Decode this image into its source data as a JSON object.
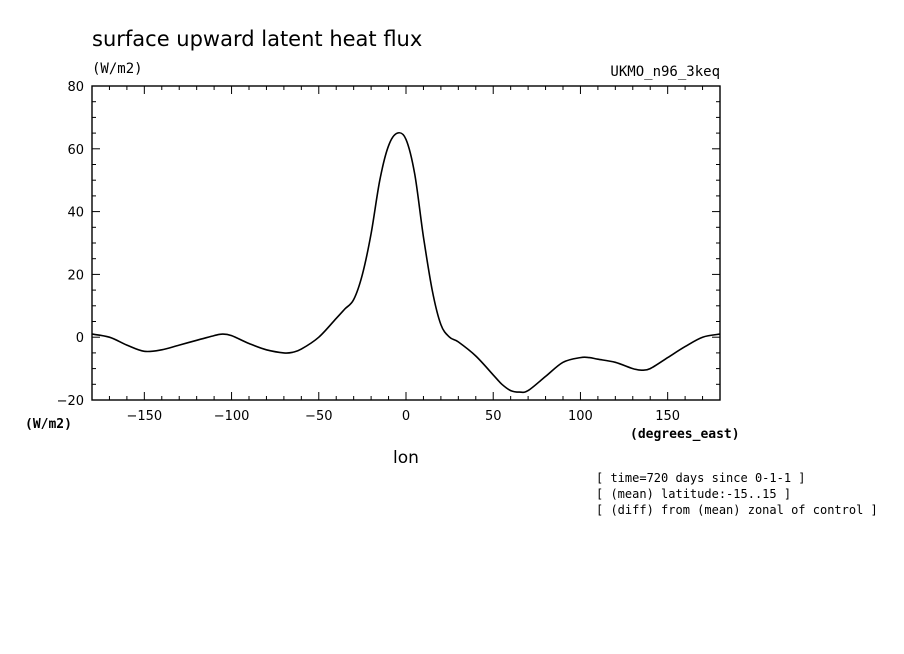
{
  "chart_data": {
    "type": "line",
    "title": "surface upward latent heat flux",
    "ylabel": "(W/m2)",
    "ylabel_lower": "(W/m2)",
    "model": "UKMO_n96_3keq",
    "xlabel": "lon",
    "xunit": "(degrees_east)",
    "xlim": [
      -180,
      180
    ],
    "ylim": [
      -20,
      80
    ],
    "x_ticks": [
      -150,
      -100,
      -50,
      0,
      50,
      100,
      150
    ],
    "x_tick_labels": [
      "−150",
      "−100",
      "−50",
      "0",
      "50",
      "100",
      "150"
    ],
    "y_ticks": [
      80,
      60,
      40,
      20,
      0,
      -20
    ],
    "y_tick_labels": [
      "80",
      "60",
      "40",
      "20",
      "0",
      "−20"
    ],
    "notes": [
      "[ time=720 days since 0-1-1 ]",
      "[ (mean) latitude:-15..15 ]",
      "[ (diff) from (mean) zonal of control ]"
    ],
    "series": [
      {
        "x": [
          -180,
          -170,
          -160,
          -150,
          -140,
          -130,
          -120,
          -110,
          -105,
          -100,
          -90,
          -80,
          -70,
          -65,
          -60,
          -50,
          -40,
          -35,
          -30,
          -25,
          -20,
          -15,
          -10,
          -5,
          0,
          5,
          10,
          15,
          20,
          25,
          30,
          40,
          50,
          55,
          60,
          65,
          70,
          80,
          90,
          100,
          105,
          110,
          120,
          130,
          135,
          140,
          150,
          160,
          170,
          180
        ],
        "y": [
          1,
          0,
          -2.5,
          -4.5,
          -4,
          -2.5,
          -1,
          0.5,
          1,
          0.5,
          -2,
          -4,
          -5,
          -4.8,
          -3.8,
          0,
          6,
          9,
          12,
          20,
          33,
          50,
          61,
          65,
          63,
          52,
          32,
          15,
          4,
          0,
          -1.5,
          -6,
          -12,
          -15,
          -17,
          -17.5,
          -17,
          -12.5,
          -8,
          -6.5,
          -6.5,
          -7,
          -8,
          -10,
          -10.5,
          -10,
          -6.5,
          -3,
          0,
          1
        ]
      }
    ]
  }
}
